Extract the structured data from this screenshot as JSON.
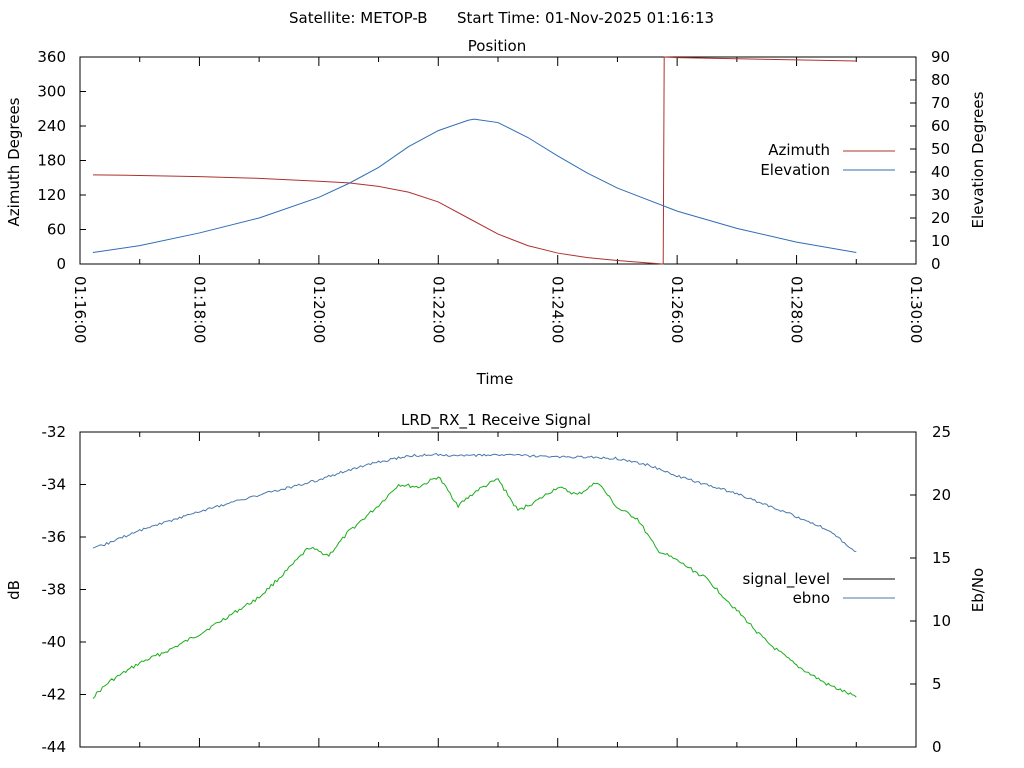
{
  "header": {
    "satellite_label": "Satellite: METOP-B",
    "start_time_label": "Start Time: 01-Nov-2025 01:16:13"
  },
  "chart_data": [
    {
      "type": "line",
      "title": "Position",
      "xlabel": "Time",
      "ylabel": "Azimuth Degrees",
      "y2label": "Elevation Degrees",
      "xlim": [
        "01:16:00",
        "01:30:00"
      ],
      "ylim": [
        0,
        360
      ],
      "y2lim": [
        0,
        90
      ],
      "x_ticks": [
        "01:16:00",
        "01:18:00",
        "01:20:00",
        "01:22:00",
        "01:24:00",
        "01:26:00",
        "01:28:00",
        "01:30:00"
      ],
      "y_ticks": [
        "0",
        "60",
        "120",
        "180",
        "240",
        "300",
        "360"
      ],
      "y2_ticks": [
        "0",
        "10",
        "20",
        "30",
        "40",
        "50",
        "60",
        "70",
        "80",
        "90"
      ],
      "legend_position": "right",
      "colors": {
        "azimuth": "#b03030",
        "elevation": "#2f6db5"
      },
      "series": [
        {
          "name": "Azimuth",
          "axis": "left",
          "x": [
            "01:16:13",
            "01:17:00",
            "01:18:00",
            "01:19:00",
            "01:20:00",
            "01:20:30",
            "01:21:00",
            "01:21:30",
            "01:22:00",
            "01:22:30",
            "01:23:00",
            "01:23:30",
            "01:24:00",
            "01:24:30",
            "01:25:00",
            "01:25:30",
            "01:25:46",
            "01:25:47",
            "01:26:00",
            "01:27:00",
            "01:28:00",
            "01:29:00"
          ],
          "values": [
            155,
            154,
            152,
            149,
            144,
            141,
            135,
            125,
            108,
            80,
            52,
            32,
            19,
            11,
            6,
            2,
            0,
            360,
            359,
            357,
            355,
            353
          ]
        },
        {
          "name": "Elevation",
          "axis": "right",
          "x": [
            "01:16:13",
            "01:17:00",
            "01:18:00",
            "01:19:00",
            "01:20:00",
            "01:20:30",
            "01:21:00",
            "01:21:30",
            "01:22:00",
            "01:22:30",
            "01:22:36",
            "01:23:00",
            "01:23:30",
            "01:24:00",
            "01:24:30",
            "01:25:00",
            "01:26:00",
            "01:27:00",
            "01:28:00",
            "01:29:00"
          ],
          "values": [
            5,
            8,
            13.5,
            20,
            29,
            35,
            42,
            51,
            58,
            62.5,
            63,
            61.5,
            55,
            47,
            39.5,
            33,
            23,
            15.5,
            9.5,
            5
          ]
        }
      ]
    },
    {
      "type": "line",
      "title": "LRD_RX_1 Receive Signal",
      "ylabel": "dB",
      "y2label": "Eb/No",
      "ylim": [
        -44,
        -32
      ],
      "y2lim": [
        0,
        25
      ],
      "y_ticks": [
        "-32",
        "-34",
        "-36",
        "-38",
        "-40",
        "-42",
        "-44"
      ],
      "y2_ticks": [
        "0",
        "5",
        "10",
        "15",
        "20",
        "25"
      ],
      "legend_position": "right",
      "colors": {
        "signal_level": "#000000",
        "ebno": "#4a78ad",
        "green_trace": "#1aad1a"
      },
      "series": [
        {
          "name": "signal_level",
          "axis": "left",
          "x": [],
          "values": []
        },
        {
          "name": "ebno",
          "axis": "right",
          "x": [
            "01:16:13",
            "01:17:00",
            "01:18:00",
            "01:19:00",
            "01:20:00",
            "01:20:30",
            "01:21:00",
            "01:21:30",
            "01:22:00",
            "01:22:30",
            "01:23:00",
            "01:23:30",
            "01:24:00",
            "01:24:30",
            "01:25:00",
            "01:25:30",
            "01:26:00",
            "01:26:30",
            "01:27:00",
            "01:27:30",
            "01:28:00",
            "01:28:30",
            "01:29:00"
          ],
          "values": [
            15.7,
            17.2,
            18.7,
            20.0,
            21.2,
            22.0,
            22.6,
            23.1,
            23.2,
            23.1,
            23.2,
            23.1,
            23.0,
            23.0,
            22.9,
            22.4,
            21.5,
            20.8,
            20.1,
            19.2,
            18.3,
            17.3,
            15.5
          ]
        },
        {
          "name": "",
          "axis": "left",
          "x": [
            "01:16:13",
            "01:16:30",
            "01:17:00",
            "01:17:30",
            "01:18:00",
            "01:18:30",
            "01:19:00",
            "01:19:30",
            "01:19:50",
            "01:20:10",
            "01:20:30",
            "01:21:00",
            "01:21:20",
            "01:21:40",
            "01:22:00",
            "01:22:20",
            "01:22:40",
            "01:23:00",
            "01:23:20",
            "01:23:40",
            "01:24:00",
            "01:24:20",
            "01:24:40",
            "01:25:00",
            "01:25:20",
            "01:25:40",
            "01:26:00",
            "01:26:30",
            "01:27:00",
            "01:27:30",
            "01:28:00",
            "01:28:30",
            "01:29:00"
          ],
          "values": [
            -42.1,
            -41.5,
            -40.8,
            -40.3,
            -39.7,
            -39.0,
            -38.3,
            -37.2,
            -36.4,
            -36.7,
            -35.8,
            -34.8,
            -34.0,
            -34.1,
            -33.7,
            -34.8,
            -34.2,
            -33.8,
            -35.0,
            -34.6,
            -34.1,
            -34.4,
            -33.9,
            -34.9,
            -35.3,
            -36.5,
            -36.9,
            -37.6,
            -38.8,
            -40.0,
            -40.9,
            -41.6,
            -42.1
          ]
        }
      ]
    }
  ]
}
